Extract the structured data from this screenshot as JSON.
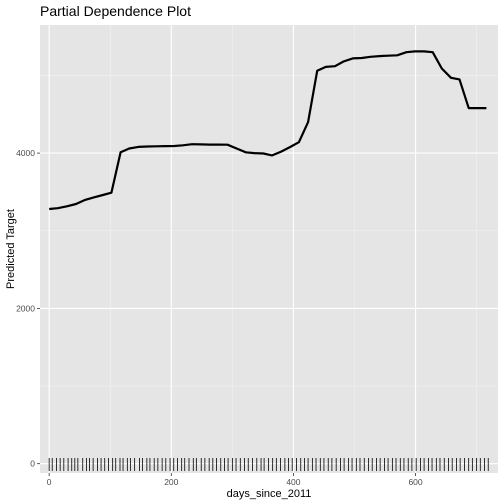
{
  "chart_data": {
    "type": "line",
    "title": "Partial Dependence Plot",
    "xlabel": "days_since_2011",
    "ylabel": "Predicted Target",
    "xlim": [
      -15,
      735
    ],
    "ylim": [
      -120,
      5650
    ],
    "x_ticks": [
      0,
      200,
      400,
      600
    ],
    "y_ticks": [
      0,
      2000,
      4000
    ],
    "grid": true,
    "legend": "none",
    "colors": {
      "panel": "#e5e5e5",
      "grid_major": "#ffffff",
      "grid_minor": "#f2f2f2",
      "line": "#000000",
      "tick_text": "#4d4d4d"
    },
    "series": [
      {
        "x": [
          0,
          14,
          29,
          44,
          58,
          73,
          88,
          102,
          117,
          131,
          146,
          161,
          175,
          190,
          205,
          219,
          234,
          248,
          263,
          278,
          292,
          307,
          322,
          336,
          351,
          365,
          380,
          395,
          409,
          424,
          439,
          453,
          468,
          482,
          497,
          512,
          526,
          541,
          555,
          570,
          585,
          599,
          614,
          628,
          643,
          658,
          672,
          687,
          701,
          716
        ],
        "y": [
          3280,
          3290,
          3315,
          3345,
          3395,
          3430,
          3460,
          3490,
          4010,
          4060,
          4080,
          4085,
          4088,
          4090,
          4092,
          4100,
          4115,
          4112,
          4110,
          4110,
          4108,
          4060,
          4010,
          4000,
          3995,
          3970,
          4020,
          4080,
          4140,
          4400,
          5060,
          5110,
          5120,
          5180,
          5220,
          5225,
          5240,
          5250,
          5255,
          5260,
          5300,
          5310,
          5310,
          5300,
          5090,
          4970,
          4950,
          4580,
          4580,
          4580
        ]
      }
    ],
    "rug_x": [
      0,
      5,
      12,
      18,
      24,
      31,
      37,
      42,
      47,
      55,
      61,
      66,
      72,
      79,
      85,
      91,
      97,
      104,
      109,
      116,
      121,
      128,
      133,
      140,
      148,
      153,
      160,
      165,
      172,
      178,
      185,
      191,
      198,
      204,
      210,
      217,
      222,
      229,
      236,
      241,
      249,
      255,
      262,
      268,
      274,
      281,
      287,
      293,
      300,
      306,
      313,
      320,
      326,
      333,
      340,
      347,
      352,
      359,
      366,
      372,
      379,
      386,
      392,
      398,
      405,
      412,
      418,
      424,
      431,
      437,
      444,
      450,
      457,
      463,
      470,
      477,
      483,
      490,
      496,
      503,
      509,
      516,
      523,
      529,
      536,
      542,
      549,
      555,
      562,
      568,
      575,
      581,
      588,
      594,
      601,
      608,
      614,
      621,
      627,
      634,
      640,
      647,
      654,
      660,
      667,
      673,
      680,
      687,
      693,
      700,
      706,
      713,
      719
    ]
  }
}
